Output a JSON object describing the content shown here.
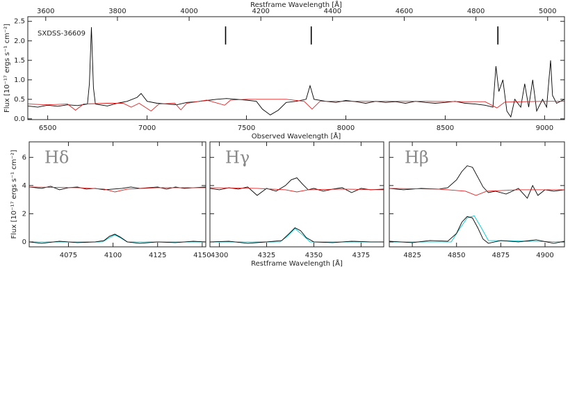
{
  "chart_data": [
    {
      "type": "line",
      "x2label": "Restframe Wavelength [Å]",
      "xlabel": "Observed Wavelength [Å]",
      "ylabel": "Flux [10⁻¹⁷ ergs s⁻¹ cm⁻²]",
      "annotation": "SXDSS-36609",
      "xlim": [
        6400,
        9100
      ],
      "xticks": [
        6500,
        7000,
        7500,
        8000,
        8500,
        9000
      ],
      "x2lim": [
        3550,
        5047
      ],
      "x2ticks": [
        3600,
        3800,
        4000,
        4200,
        4400,
        4600,
        4800,
        5000
      ],
      "ylim": [
        -0.02,
        2.62
      ],
      "yticks": [
        {
          "value": 0,
          "label": "0.0"
        },
        0.5,
        {
          "value": 1,
          "label": "1.0"
        },
        1.5,
        {
          "value": 2,
          "label": "2.0"
        },
        2.5
      ],
      "markers_x": [
        7395,
        7826,
        8765
      ],
      "series": [
        {
          "color": "#000000",
          "x": [
            6400,
            6450,
            6500,
            6550,
            6600,
            6650,
            6700,
            6710,
            6720,
            6730,
            6740,
            6800,
            6850,
            6900,
            6950,
            6970,
            7000,
            7050,
            7100,
            7150,
            7200,
            7250,
            7300,
            7350,
            7400,
            7450,
            7500,
            7550,
            7580,
            7620,
            7660,
            7700,
            7750,
            7800,
            7820,
            7840,
            7900,
            7950,
            8000,
            8050,
            8100,
            8150,
            8200,
            8250,
            8300,
            8350,
            8400,
            8450,
            8500,
            8550,
            8600,
            8650,
            8700,
            8740,
            8755,
            8770,
            8790,
            8810,
            8830,
            8850,
            8880,
            8900,
            8920,
            8940,
            8960,
            8990,
            9010,
            9030,
            9040,
            9060,
            9100
          ],
          "values": [
            0.33,
            0.3,
            0.35,
            0.32,
            0.36,
            0.34,
            0.38,
            0.9,
            2.35,
            0.8,
            0.38,
            0.33,
            0.4,
            0.45,
            0.55,
            0.65,
            0.45,
            0.4,
            0.38,
            0.36,
            0.42,
            0.44,
            0.47,
            0.5,
            0.52,
            0.5,
            0.48,
            0.45,
            0.25,
            0.1,
            0.22,
            0.42,
            0.45,
            0.5,
            0.85,
            0.5,
            0.45,
            0.42,
            0.47,
            0.44,
            0.4,
            0.45,
            0.42,
            0.44,
            0.4,
            0.45,
            0.42,
            0.4,
            0.42,
            0.45,
            0.4,
            0.38,
            0.35,
            0.3,
            1.35,
            0.7,
            1.0,
            0.2,
            0.05,
            0.5,
            0.3,
            0.9,
            0.3,
            1.0,
            0.2,
            0.5,
            0.3,
            1.5,
            0.6,
            0.4,
            0.5
          ]
        },
        {
          "color": "#e02020",
          "x": [
            6400,
            6500,
            6600,
            6640,
            6680,
            6800,
            6880,
            6920,
            6960,
            7020,
            7060,
            7140,
            7170,
            7200,
            7300,
            7390,
            7420,
            7500,
            7700,
            7790,
            7830,
            7870,
            8000,
            8200,
            8400,
            8600,
            8700,
            8760,
            8800,
            9000,
            9100
          ],
          "values": [
            0.38,
            0.36,
            0.38,
            0.22,
            0.38,
            0.4,
            0.4,
            0.3,
            0.4,
            0.2,
            0.38,
            0.4,
            0.23,
            0.4,
            0.48,
            0.35,
            0.48,
            0.5,
            0.5,
            0.45,
            0.25,
            0.45,
            0.45,
            0.45,
            0.45,
            0.44,
            0.44,
            0.28,
            0.43,
            0.45,
            0.45
          ]
        }
      ]
    },
    {
      "type": "line",
      "ylabel": "Flux [10⁻¹⁷ ergs s⁻¹ cm⁻²]",
      "annotation": "Hδ",
      "xlim": [
        4053,
        4152
      ],
      "xticks": [
        4075,
        4100,
        4125,
        4150
      ],
      "ylim": [
        -0.35,
        7.1
      ],
      "yticks": [
        0,
        2,
        4,
        6
      ],
      "ytick_labels": true,
      "series": [
        {
          "color": "#000000",
          "x": [
            4053,
            4060,
            4065,
            4070,
            4075,
            4080,
            4085,
            4090,
            4095,
            4100,
            4105,
            4110,
            4115,
            4120,
            4125,
            4130,
            4135,
            4140,
            4145,
            4152
          ],
          "values": [
            3.9,
            3.8,
            3.95,
            3.7,
            3.85,
            3.9,
            3.75,
            3.8,
            3.7,
            3.75,
            3.8,
            3.9,
            3.8,
            3.85,
            3.9,
            3.75,
            3.9,
            3.8,
            3.85,
            3.9
          ]
        },
        {
          "color": "#e02020",
          "x": [
            4053,
            4080,
            4095,
            4101,
            4108,
            4125,
            4152
          ],
          "values": [
            3.9,
            3.85,
            3.75,
            3.55,
            3.75,
            3.85,
            3.85
          ]
        },
        {
          "color": "#00c8d0",
          "x": [
            4053,
            4094,
            4098,
            4101,
            4104,
            4108,
            4152
          ],
          "values": [
            0,
            0,
            0.3,
            0.5,
            0.3,
            0,
            0
          ]
        },
        {
          "color": "#000000",
          "x": [
            4053,
            4060,
            4070,
            4080,
            4090,
            4095,
            4098,
            4101,
            4104,
            4108,
            4115,
            4125,
            4135,
            4145,
            4152
          ],
          "values": [
            0.0,
            -0.1,
            0.05,
            -0.05,
            0.0,
            0.1,
            0.4,
            0.55,
            0.35,
            0.0,
            -0.1,
            0.0,
            -0.05,
            0.05,
            0.0
          ]
        }
      ]
    },
    {
      "type": "line",
      "xlabel": "Restframe Wavelength [Å]",
      "annotation": "Hγ",
      "xlim": [
        4295,
        4387
      ],
      "xticks": [
        4300,
        4325,
        4350,
        4375
      ],
      "ylim": [
        -0.35,
        7.1
      ],
      "yticks": [
        0,
        2,
        4,
        6
      ],
      "ytick_labels": false,
      "series": [
        {
          "color": "#000000",
          "x": [
            4295,
            4300,
            4305,
            4310,
            4315,
            4320,
            4325,
            4330,
            4335,
            4338,
            4341,
            4344,
            4347,
            4350,
            4355,
            4360,
            4365,
            4370,
            4375,
            4380,
            4387
          ],
          "values": [
            3.8,
            3.7,
            3.85,
            3.75,
            3.9,
            3.3,
            3.8,
            3.6,
            4.0,
            4.4,
            4.55,
            4.1,
            3.7,
            3.8,
            3.6,
            3.75,
            3.85,
            3.5,
            3.8,
            3.7,
            3.75
          ]
        },
        {
          "color": "#e02020",
          "x": [
            4295,
            4320,
            4335,
            4341,
            4347,
            4365,
            4387
          ],
          "values": [
            3.85,
            3.8,
            3.7,
            3.55,
            3.7,
            3.75,
            3.7
          ]
        },
        {
          "color": "#00c8d0",
          "x": [
            4295,
            4332,
            4336,
            4340,
            4344,
            4348,
            4387
          ],
          "values": [
            0,
            0,
            0.4,
            0.95,
            0.5,
            0,
            0
          ]
        },
        {
          "color": "#000000",
          "x": [
            4295,
            4305,
            4315,
            4325,
            4333,
            4337,
            4340,
            4343,
            4346,
            4350,
            4360,
            4370,
            4380,
            4387
          ],
          "values": [
            0,
            0.05,
            -0.1,
            0.0,
            0.1,
            0.6,
            1.0,
            0.8,
            0.3,
            0.0,
            -0.05,
            0.05,
            0.0,
            0.0
          ]
        }
      ]
    },
    {
      "type": "line",
      "annotation": "Hβ",
      "xlim": [
        4812,
        4911
      ],
      "xticks": [
        4825,
        4850,
        4875,
        4900
      ],
      "ylim": [
        -0.35,
        7.1
      ],
      "yticks": [
        0,
        2,
        4,
        6
      ],
      "ytick_labels": false,
      "series": [
        {
          "color": "#000000",
          "x": [
            4812,
            4820,
            4830,
            4840,
            4845,
            4850,
            4853,
            4856,
            4859,
            4862,
            4865,
            4868,
            4872,
            4878,
            4885,
            4890,
            4893,
            4896,
            4900,
            4905,
            4911
          ],
          "values": [
            3.8,
            3.7,
            3.8,
            3.75,
            3.85,
            4.4,
            5.0,
            5.4,
            5.3,
            4.6,
            3.9,
            3.5,
            3.6,
            3.4,
            3.8,
            3.1,
            4.0,
            3.3,
            3.7,
            3.6,
            3.7
          ]
        },
        {
          "color": "#e02020",
          "x": [
            4812,
            4840,
            4855,
            4861,
            4867,
            4885,
            4911
          ],
          "values": [
            3.8,
            3.75,
            3.6,
            3.3,
            3.6,
            3.7,
            3.7
          ]
        },
        {
          "color": "#00c8d0",
          "x": [
            4812,
            4847,
            4851,
            4856,
            4860,
            4864,
            4868,
            4911
          ],
          "values": [
            0,
            0,
            0.8,
            1.7,
            1.85,
            1.0,
            0.1,
            0
          ]
        },
        {
          "color": "#000000",
          "x": [
            4812,
            4825,
            4835,
            4845,
            4850,
            4853,
            4856,
            4859,
            4862,
            4865,
            4868,
            4875,
            4885,
            4895,
            4905,
            4911
          ],
          "values": [
            0.05,
            -0.05,
            0.1,
            0.05,
            0.6,
            1.4,
            1.8,
            1.7,
            1.0,
            0.2,
            -0.1,
            0.1,
            0.0,
            0.15,
            -0.1,
            0.05
          ]
        }
      ]
    }
  ]
}
